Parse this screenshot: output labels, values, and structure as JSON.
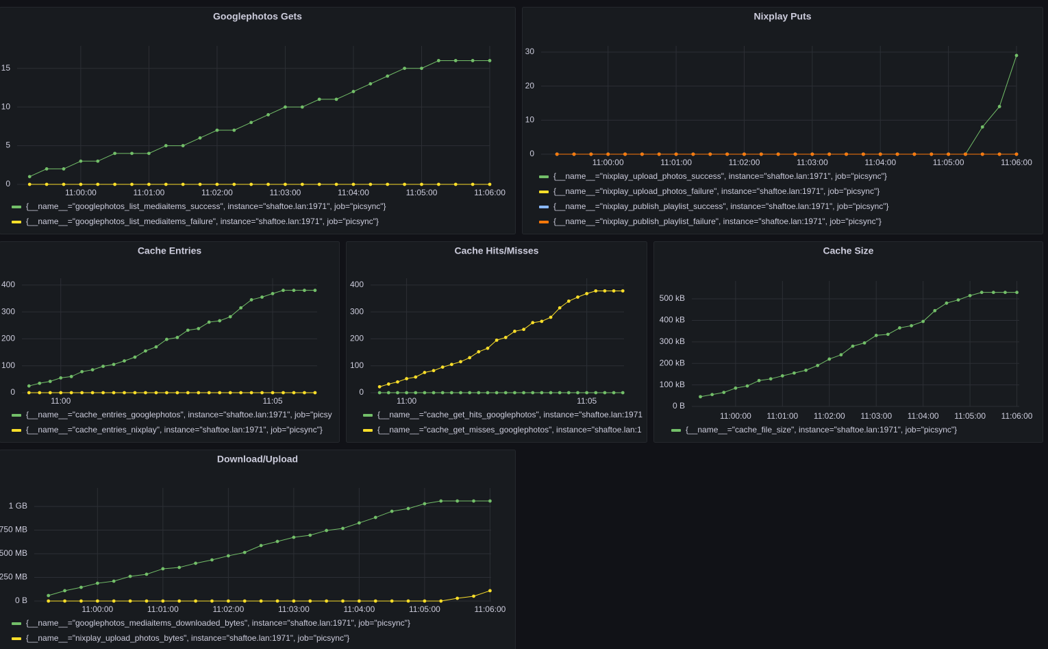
{
  "chart_data": [
    {
      "type": "line",
      "title": "Googlephotos Gets",
      "x": [
        "10:59:15",
        "10:59:30",
        "10:59:45",
        "11:00:00",
        "11:00:15",
        "11:00:30",
        "11:00:45",
        "11:01:00",
        "11:01:15",
        "11:01:30",
        "11:01:45",
        "11:02:00",
        "11:02:15",
        "11:02:30",
        "11:02:45",
        "11:03:00",
        "11:03:15",
        "11:03:30",
        "11:03:45",
        "11:04:00",
        "11:04:15",
        "11:04:30",
        "11:04:45",
        "11:05:00",
        "11:05:15",
        "11:05:30",
        "11:05:45",
        "11:06:00"
      ],
      "xlim": [
        "10:59:04",
        "11:06:00"
      ],
      "xticks": [
        "11:00:00",
        "11:01:00",
        "11:02:00",
        "11:03:00",
        "11:04:00",
        "11:05:00",
        "11:06:00"
      ],
      "ylim": [
        0,
        17.9
      ],
      "yticks": [
        0,
        5,
        10,
        15
      ],
      "grid": true,
      "series": [
        {
          "name": "{__name__=\"googlephotos_list_mediaitems_success\", instance=\"shaftoe.lan:1971\", job=\"picsync\"}",
          "color": "#73bf69",
          "values": [
            1,
            2,
            2,
            3,
            3,
            4,
            4,
            4,
            5,
            5,
            6,
            7,
            7,
            8,
            9,
            10,
            10,
            11,
            11,
            12,
            13,
            14,
            15,
            15,
            16,
            16,
            16,
            16
          ]
        },
        {
          "name": "{__name__=\"googlephotos_list_mediaitems_failure\", instance=\"shaftoe.lan:1971\", job=\"picsync\"}",
          "color": "#fade2a",
          "values": [
            0,
            0,
            0,
            0,
            0,
            0,
            0,
            0,
            0,
            0,
            0,
            0,
            0,
            0,
            0,
            0,
            0,
            0,
            0,
            0,
            0,
            0,
            0,
            0,
            0,
            0,
            0,
            0
          ]
        }
      ]
    },
    {
      "type": "line",
      "title": "Nixplay Puts",
      "x": [
        "10:59:15",
        "10:59:30",
        "10:59:45",
        "11:00:00",
        "11:00:15",
        "11:00:30",
        "11:00:45",
        "11:01:00",
        "11:01:15",
        "11:01:30",
        "11:01:45",
        "11:02:00",
        "11:02:15",
        "11:02:30",
        "11:02:45",
        "11:03:00",
        "11:03:15",
        "11:03:30",
        "11:03:45",
        "11:04:00",
        "11:04:15",
        "11:04:30",
        "11:04:45",
        "11:05:00",
        "11:05:15",
        "11:05:30",
        "11:05:45",
        "11:06:00"
      ],
      "xlim": [
        "10:59:01",
        "11:06:00"
      ],
      "xticks": [
        "11:00:00",
        "11:01:00",
        "11:02:00",
        "11:03:00",
        "11:04:00",
        "11:05:00",
        "11:06:00"
      ],
      "ylim": [
        0,
        31.8
      ],
      "yticks": [
        0,
        10,
        20,
        30
      ],
      "grid": true,
      "series": [
        {
          "name": "{__name__=\"nixplay_upload_photos_success\", instance=\"shaftoe.lan:1971\", job=\"picsync\"}",
          "color": "#73bf69",
          "values": [
            0,
            0,
            0,
            0,
            0,
            0,
            0,
            0,
            0,
            0,
            0,
            0,
            0,
            0,
            0,
            0,
            0,
            0,
            0,
            0,
            0,
            0,
            0,
            0,
            0,
            8,
            14,
            29
          ]
        },
        {
          "name": "{__name__=\"nixplay_upload_photos_failure\", instance=\"shaftoe.lan:1971\", job=\"picsync\"}",
          "color": "#fade2a",
          "values": [
            0,
            0,
            0,
            0,
            0,
            0,
            0,
            0,
            0,
            0,
            0,
            0,
            0,
            0,
            0,
            0,
            0,
            0,
            0,
            0,
            0,
            0,
            0,
            0,
            0,
            0,
            0,
            0
          ]
        },
        {
          "name": "{__name__=\"nixplay_publish_playlist_success\", instance=\"shaftoe.lan:1971\", job=\"picsync\"}",
          "color": "#8ab8ff",
          "values": [
            0,
            0,
            0,
            0,
            0,
            0,
            0,
            0,
            0,
            0,
            0,
            0,
            0,
            0,
            0,
            0,
            0,
            0,
            0,
            0,
            0,
            0,
            0,
            0,
            0,
            0,
            0,
            0
          ]
        },
        {
          "name": "{__name__=\"nixplay_publish_playlist_failure\", instance=\"shaftoe.lan:1971\", job=\"picsync\"}",
          "color": "#ff780a",
          "values": [
            0,
            0,
            0,
            0,
            0,
            0,
            0,
            0,
            0,
            0,
            0,
            0,
            0,
            0,
            0,
            0,
            0,
            0,
            0,
            0,
            0,
            0,
            0,
            0,
            0,
            0,
            0,
            0
          ]
        }
      ]
    },
    {
      "type": "line",
      "title": "Cache Entries",
      "x": [
        "10:59:15",
        "10:59:30",
        "10:59:45",
        "11:00:00",
        "11:00:15",
        "11:00:30",
        "11:00:45",
        "11:01:00",
        "11:01:15",
        "11:01:30",
        "11:01:45",
        "11:02:00",
        "11:02:15",
        "11:02:30",
        "11:02:45",
        "11:03:00",
        "11:03:15",
        "11:03:30",
        "11:03:45",
        "11:04:00",
        "11:04:15",
        "11:04:30",
        "11:04:45",
        "11:05:00",
        "11:05:15",
        "11:05:30",
        "11:05:45",
        "11:06:00"
      ],
      "xlim": [
        "10:59:05",
        "11:06:03"
      ],
      "xticks": [
        "11:00",
        "11:05"
      ],
      "ylim": [
        0,
        425
      ],
      "yticks": [
        0,
        100,
        200,
        300,
        400
      ],
      "grid": true,
      "series": [
        {
          "name": "{__name__=\"cache_entries_googlephotos\", instance=\"shaftoe.lan:1971\", job=\"picsy",
          "color": "#73bf69",
          "values": [
            25,
            35,
            42,
            55,
            60,
            78,
            85,
            98,
            105,
            118,
            132,
            155,
            170,
            198,
            205,
            232,
            238,
            262,
            267,
            282,
            315,
            345,
            355,
            368,
            380,
            380,
            380,
            380
          ]
        },
        {
          "name": "{__name__=\"cache_entries_nixplay\", instance=\"shaftoe.lan:1971\", job=\"picsync\"}",
          "color": "#fade2a",
          "values": [
            0,
            0,
            0,
            0,
            0,
            0,
            0,
            0,
            0,
            0,
            0,
            0,
            0,
            0,
            0,
            0,
            0,
            0,
            0,
            0,
            0,
            0,
            0,
            0,
            0,
            0,
            0,
            0
          ]
        }
      ]
    },
    {
      "type": "line",
      "title": "Cache Hits/Misses",
      "x": [
        "10:59:15",
        "10:59:30",
        "10:59:45",
        "11:00:00",
        "11:00:15",
        "11:00:30",
        "11:00:45",
        "11:01:00",
        "11:01:15",
        "11:01:30",
        "11:01:45",
        "11:02:00",
        "11:02:15",
        "11:02:30",
        "11:02:45",
        "11:03:00",
        "11:03:15",
        "11:03:30",
        "11:03:45",
        "11:04:00",
        "11:04:15",
        "11:04:30",
        "11:04:45",
        "11:05:00",
        "11:05:15",
        "11:05:30",
        "11:05:45",
        "11:06:00"
      ],
      "xlim": [
        "10:59:00",
        "11:06:02"
      ],
      "xticks": [
        "11:00",
        "11:05"
      ],
      "ylim": [
        0,
        425
      ],
      "yticks": [
        0,
        100,
        200,
        300,
        400
      ],
      "grid": true,
      "series": [
        {
          "name": "{__name__=\"cache_get_hits_googlephotos\", instance=\"shaftoe.lan:1971",
          "color": "#73bf69",
          "values": [
            0,
            0,
            0,
            0,
            0,
            0,
            0,
            0,
            0,
            0,
            0,
            0,
            0,
            0,
            0,
            0,
            0,
            0,
            0,
            0,
            0,
            0,
            0,
            0,
            0,
            0,
            0,
            0
          ]
        },
        {
          "name": "{__name__=\"cache_get_misses_googlephotos\", instance=\"shaftoe.lan:1",
          "color": "#fade2a",
          "values": [
            22,
            32,
            40,
            52,
            58,
            75,
            82,
            95,
            105,
            115,
            130,
            152,
            165,
            195,
            205,
            228,
            235,
            260,
            265,
            280,
            315,
            340,
            355,
            368,
            378,
            378,
            378,
            378
          ]
        }
      ]
    },
    {
      "type": "line",
      "title": "Cache Size",
      "x": [
        "10:59:15",
        "10:59:30",
        "10:59:45",
        "11:00:00",
        "11:00:15",
        "11:00:30",
        "11:00:45",
        "11:01:00",
        "11:01:15",
        "11:01:30",
        "11:01:45",
        "11:02:00",
        "11:02:15",
        "11:02:30",
        "11:02:45",
        "11:03:00",
        "11:03:15",
        "11:03:30",
        "11:03:45",
        "11:04:00",
        "11:04:15",
        "11:04:30",
        "11:04:45",
        "11:05:00",
        "11:05:15",
        "11:05:30",
        "11:05:45",
        "11:06:00"
      ],
      "xlim": [
        "10:59:04",
        "11:06:03"
      ],
      "xticks": [
        "11:00:00",
        "11:01:00",
        "11:02:00",
        "11:03:00",
        "11:04:00",
        "11:05:00",
        "11:06:00"
      ],
      "ylim": [
        0,
        583000
      ],
      "yticks": [
        {
          "value": 0,
          "label": "0 B"
        },
        {
          "value": 100000,
          "label": "100 kB"
        },
        {
          "value": 200000,
          "label": "200 kB"
        },
        {
          "value": 300000,
          "label": "300 kB"
        },
        {
          "value": 400000,
          "label": "400 kB"
        },
        {
          "value": 500000,
          "label": "500 kB"
        }
      ],
      "grid": true,
      "series": [
        {
          "name": "{__name__=\"cache_file_size\", instance=\"shaftoe.lan:1971\", job=\"picsync\"}",
          "color": "#73bf69",
          "values": [
            45000,
            55000,
            65000,
            85000,
            95000,
            120000,
            128000,
            142000,
            155000,
            168000,
            190000,
            220000,
            240000,
            280000,
            295000,
            330000,
            335000,
            365000,
            375000,
            395000,
            445000,
            480000,
            495000,
            515000,
            530000,
            530000,
            530000,
            530000
          ]
        }
      ]
    },
    {
      "type": "line",
      "title": "Download/Upload",
      "x": [
        "10:59:15",
        "10:59:30",
        "10:59:45",
        "11:00:00",
        "11:00:15",
        "11:00:30",
        "11:00:45",
        "11:01:00",
        "11:01:15",
        "11:01:30",
        "11:01:45",
        "11:02:00",
        "11:02:15",
        "11:02:30",
        "11:02:45",
        "11:03:00",
        "11:03:15",
        "11:03:30",
        "11:03:45",
        "11:04:00",
        "11:04:15",
        "11:04:30",
        "11:04:45",
        "11:05:00",
        "11:05:15",
        "11:05:30",
        "11:05:45",
        "11:06:00"
      ],
      "xlim": [
        "10:59:02",
        "11:06:01"
      ],
      "xticks": [
        "11:00:00",
        "11:01:00",
        "11:02:00",
        "11:03:00",
        "11:04:00",
        "11:05:00",
        "11:06:00"
      ],
      "ylim": [
        0,
        1196000000
      ],
      "yticks": [
        {
          "value": 0,
          "label": "0 B"
        },
        {
          "value": 250000000,
          "label": "250 MB"
        },
        {
          "value": 500000000,
          "label": "500 MB"
        },
        {
          "value": 750000000,
          "label": "750 MB"
        },
        {
          "value": 1000000000,
          "label": "1 GB"
        }
      ],
      "grid": true,
      "series": [
        {
          "name": "{__name__=\"googlephotos_mediaitems_downloaded_bytes\", instance=\"shaftoe.lan:1971\", job=\"picsync\"}",
          "color": "#73bf69",
          "values": [
            58000000,
            109000000,
            145000000,
            188000000,
            210000000,
            261000000,
            283000000,
            341000000,
            355000000,
            399000000,
            435000000,
            478000000,
            514000000,
            587000000,
            630000000,
            674000000,
            696000000,
            746000000,
            768000000,
            826000000,
            884000000,
            949000000,
            978000000,
            1029000000,
            1058000000,
            1058000000,
            1058000000,
            1058000000
          ]
        },
        {
          "name": "{__name__=\"nixplay_upload_photos_bytes\", instance=\"shaftoe.lan:1971\", job=\"picsync\"}",
          "color": "#fade2a",
          "values": [
            0,
            0,
            0,
            0,
            0,
            0,
            0,
            0,
            0,
            0,
            0,
            0,
            0,
            0,
            0,
            0,
            0,
            0,
            0,
            0,
            0,
            0,
            0,
            0,
            0,
            29000000,
            51000000,
            109000000
          ]
        }
      ]
    }
  ]
}
